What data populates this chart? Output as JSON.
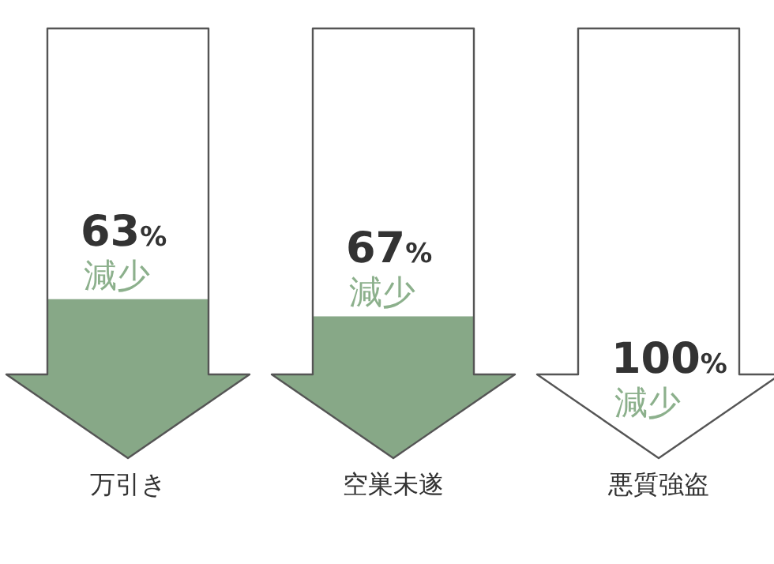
{
  "chart_data": {
    "type": "other",
    "categories": [
      "万引き",
      "空巣未遂",
      "悪質強盗"
    ],
    "values": [
      63,
      67,
      100
    ],
    "value_labels": [
      "63%",
      "67%",
      "100%"
    ],
    "annotations": [
      "減少",
      "減少",
      "減少"
    ],
    "color": "#87a887"
  }
}
